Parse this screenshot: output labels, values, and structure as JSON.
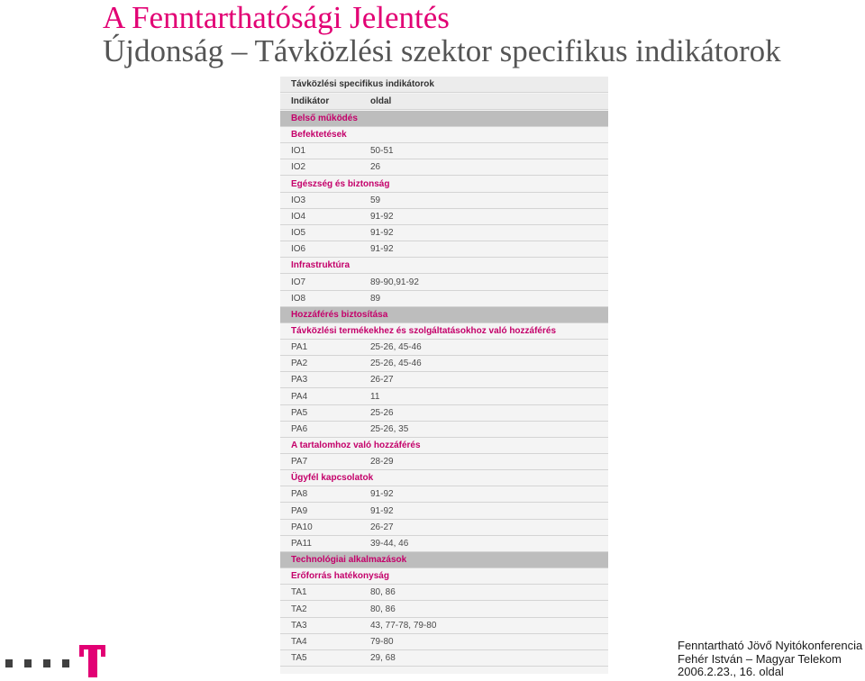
{
  "slide": {
    "title": "A Fenntarthatósági Jelentés",
    "subtitle": "Újdonság – Távközlési szektor specifikus indikátorok"
  },
  "table": {
    "caption": "Távközlési specifikus indikátorok",
    "header": {
      "indicator": "Indikátor",
      "page": "oldal"
    },
    "rows": [
      {
        "type": "section",
        "label": "Belső működés"
      },
      {
        "type": "subsection",
        "label": "Befektetések"
      },
      {
        "type": "data",
        "indicator": "IO1",
        "page": "50-51"
      },
      {
        "type": "data",
        "indicator": "IO2",
        "page": "26"
      },
      {
        "type": "subsection",
        "label": "Egészség és biztonság"
      },
      {
        "type": "data",
        "indicator": "IO3",
        "page": "59"
      },
      {
        "type": "data",
        "indicator": "IO4",
        "page": "91-92"
      },
      {
        "type": "data",
        "indicator": "IO5",
        "page": "91-92"
      },
      {
        "type": "data",
        "indicator": "IO6",
        "page": "91-92"
      },
      {
        "type": "subsection",
        "label": "Infrastruktúra"
      },
      {
        "type": "data",
        "indicator": "IO7",
        "page": "89-90,91-92"
      },
      {
        "type": "data",
        "indicator": "IO8",
        "page": "89"
      },
      {
        "type": "section",
        "label": "Hozzáférés biztosítása"
      },
      {
        "type": "subsection",
        "label": "Távközlési termékekhez és szolgáltatásokhoz való hozzáférés"
      },
      {
        "type": "data",
        "indicator": "PA1",
        "page": "25-26, 45-46"
      },
      {
        "type": "data",
        "indicator": "PA2",
        "page": "25-26, 45-46"
      },
      {
        "type": "data",
        "indicator": "PA3",
        "page": "26-27"
      },
      {
        "type": "data",
        "indicator": "PA4",
        "page": "11"
      },
      {
        "type": "data",
        "indicator": "PA5",
        "page": "25-26"
      },
      {
        "type": "data",
        "indicator": "PA6",
        "page": "25-26, 35"
      },
      {
        "type": "subsection",
        "label": "A tartalomhoz való hozzáférés"
      },
      {
        "type": "data",
        "indicator": "PA7",
        "page": "28-29"
      },
      {
        "type": "subsection",
        "label": "Ügyfél kapcsolatok"
      },
      {
        "type": "data",
        "indicator": "PA8",
        "page": "91-92"
      },
      {
        "type": "data",
        "indicator": "PA9",
        "page": "91-92"
      },
      {
        "type": "data",
        "indicator": "PA10",
        "page": "26-27"
      },
      {
        "type": "data",
        "indicator": "PA11",
        "page": "39-44, 46"
      },
      {
        "type": "section",
        "label": "Technológiai alkalmazások"
      },
      {
        "type": "subsection",
        "label": "Erőforrás hatékonyság"
      },
      {
        "type": "data",
        "indicator": "TA1",
        "page": "80, 86"
      },
      {
        "type": "data",
        "indicator": "TA2",
        "page": "80, 86"
      },
      {
        "type": "data",
        "indicator": "TA3",
        "page": "43, 77-78, 79-80"
      },
      {
        "type": "data",
        "indicator": "TA4",
        "page": "79-80"
      },
      {
        "type": "data",
        "indicator": "TA5",
        "page": "29, 68"
      }
    ]
  },
  "footer": {
    "line1": "Fenntartható Jövő Nyitókonferencia",
    "line2": "Fehér István – Magyar Telekom",
    "line3": "2006.2.23., 16. oldal"
  },
  "logo": {
    "icon": "telekom-t-logo-icon"
  },
  "colors": {
    "brand_magenta": "#e20074",
    "subtitle_gray": "#555555",
    "section_band": "#bdbdbd",
    "table_bg": "#f4f4f4",
    "label_magenta": "#c4006a"
  }
}
